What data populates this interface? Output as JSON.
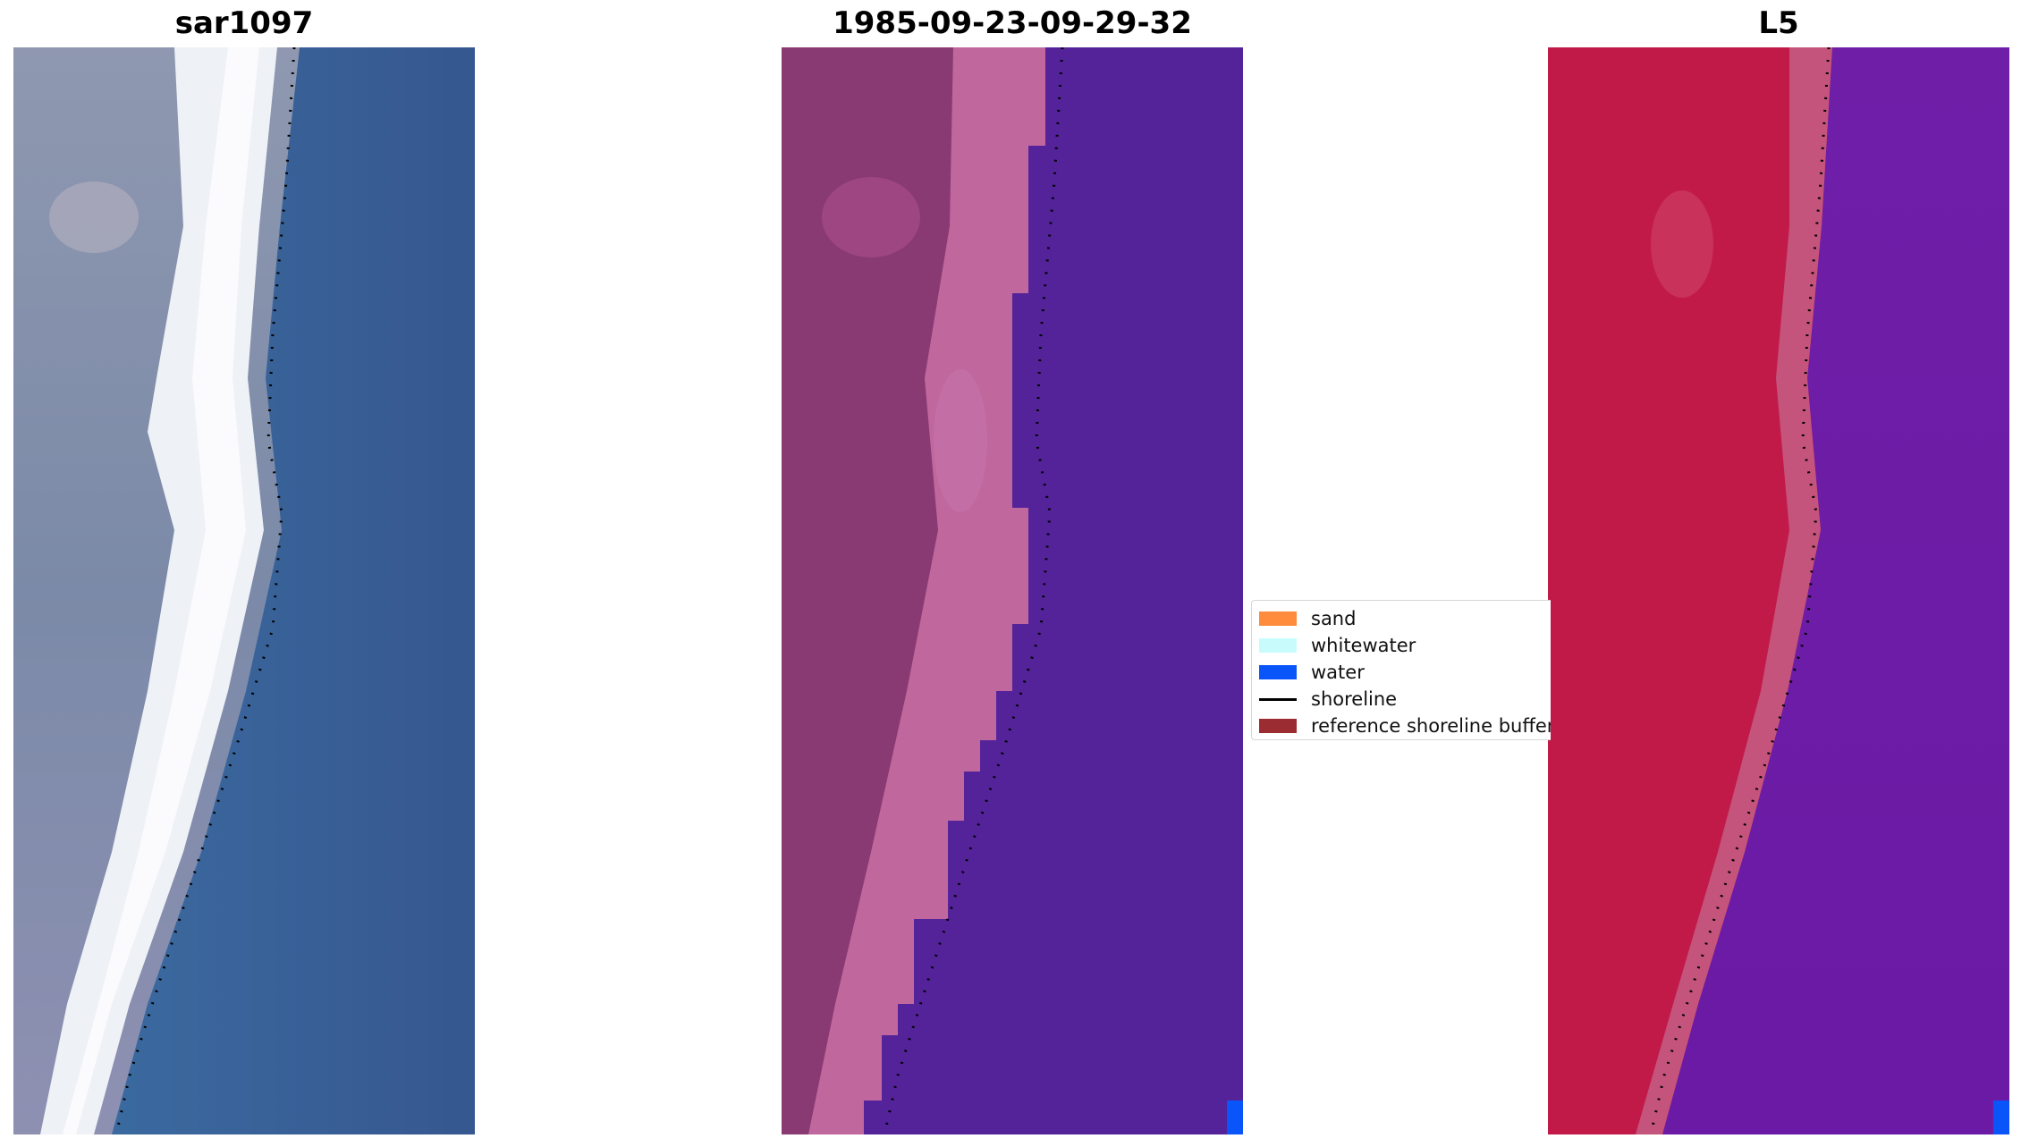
{
  "panels": [
    {
      "title": "sar1097"
    },
    {
      "title": "1985-09-23-09-29-32"
    },
    {
      "title": "L5"
    }
  ],
  "legend": {
    "items": [
      {
        "label": "sand",
        "kind": "patch",
        "color": "#fe8c3c"
      },
      {
        "label": "whitewater",
        "kind": "patch",
        "color": "#c8fcfc"
      },
      {
        "label": "water",
        "kind": "patch",
        "color": "#0a55fa"
      },
      {
        "label": "shoreline",
        "kind": "line",
        "color": "#000000"
      },
      {
        "label": "reference shoreline buffer",
        "kind": "patch",
        "color": "#9a2c32"
      }
    ]
  },
  "colors": {
    "rgb_land": "#8e94aa",
    "rgb_surf": "#eef0f4",
    "rgb_water": "#3a67a0",
    "class_land": "#8a3a72",
    "class_beach": "#c0689e",
    "class_water": "#54239a",
    "index_land": "#c21a48",
    "index_beach": "#c4547c",
    "index_water": "#6c19a6",
    "water_patch": "#0a55fa"
  },
  "icons": [
    "shoreline-dotted-line"
  ]
}
